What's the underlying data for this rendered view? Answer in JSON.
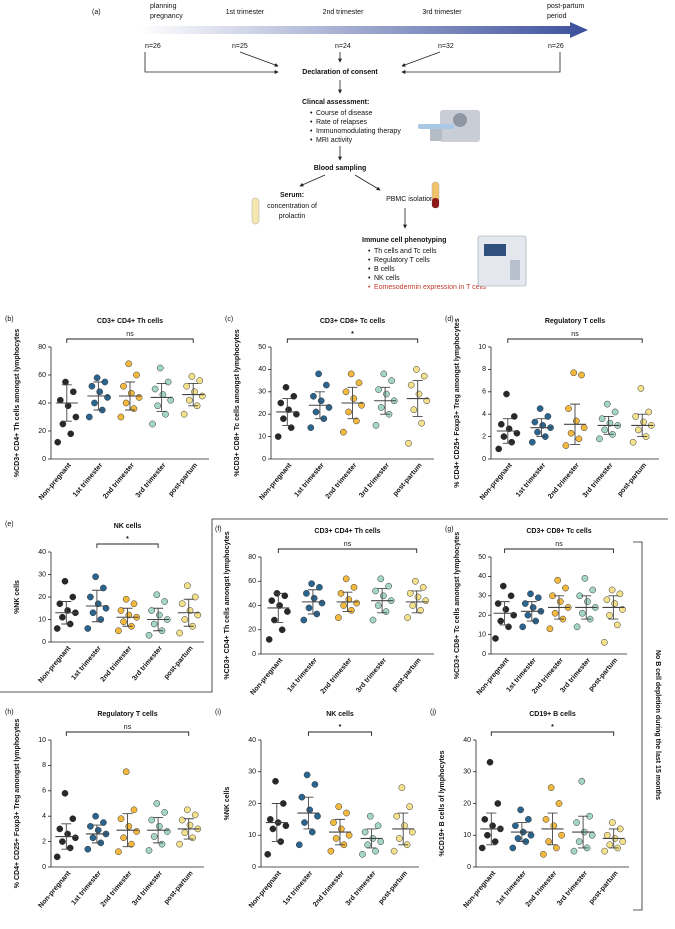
{
  "diagram": {
    "label": "(a)",
    "stages": [
      [
        "planning",
        "pregnancy"
      ],
      [
        "1st trimester"
      ],
      [
        "2nd trimester"
      ],
      [
        "3rd trimester"
      ],
      [
        "post-partum",
        "period"
      ]
    ],
    "n": [
      "n=26",
      "n=25",
      "n=24",
      "n=32",
      "n=26"
    ],
    "consent": "Declaration of consent",
    "assessment": "Clincal assessment:",
    "assessment_items": [
      "Course of disease",
      "Rate of relapses",
      "Immunomodulating therapy",
      "MRI activity"
    ],
    "sampling": "Blood sampling",
    "serum": "Serum:",
    "serum_text": [
      "concentration of",
      "prolactin"
    ],
    "pbmc": "PBMC isolation",
    "phenotyping": "Immune cell phenotyping",
    "phenotyping_items": [
      "Th cells and Tc cells",
      "Regulatory T cells",
      "B cells",
      "NK cells",
      "Eomesodermin expression in T cells"
    ],
    "side_note": "No B cell depletion during the last 15 months"
  },
  "chart_data": [
    {
      "type": "dotplot",
      "label": "(b)",
      "title": "CD3+ CD4+ Th cells",
      "ylabel": "%CD3+ CD4+ Th cells amongst lymphocytes",
      "categories": [
        "Non-pregnant",
        "1st trimester",
        "2nd trimester",
        "3rd trimester",
        "post-partum"
      ],
      "colors": [
        "#1c1c1c",
        "#1f5d8a",
        "#f2b535",
        "#9fd4c4",
        "#f3df86"
      ],
      "ylim": [
        0,
        80
      ],
      "yticks": [
        0,
        20,
        40,
        60,
        80
      ],
      "significance": "ns",
      "comparison": [
        "Non-pregnant",
        "post-partum"
      ],
      "groups": [
        {
          "mean": 40,
          "sd": 13,
          "points": [
            12,
            18,
            25,
            30,
            38,
            42,
            48,
            55
          ]
        },
        {
          "mean": 45,
          "sd": 10,
          "points": [
            30,
            35,
            40,
            44,
            48,
            52,
            55,
            58
          ]
        },
        {
          "mean": 45,
          "sd": 10,
          "points": [
            30,
            36,
            40,
            44,
            47,
            52,
            60,
            68
          ]
        },
        {
          "mean": 44,
          "sd": 10,
          "points": [
            25,
            32,
            38,
            42,
            46,
            50,
            55,
            65
          ]
        },
        {
          "mean": 46,
          "sd": 8,
          "points": [
            32,
            38,
            42,
            45,
            48,
            52,
            56,
            59
          ]
        }
      ]
    },
    {
      "type": "dotplot",
      "label": "(c)",
      "title": "CD3+ CD8+ Tc cells",
      "ylabel": "%CD3+ CD8+ Tc cells amongst lymphocytes",
      "categories": [
        "Non-pregnant",
        "1st trimester",
        "2nd trimester",
        "3rd trimester",
        "post-partum"
      ],
      "colors": [
        "#1c1c1c",
        "#1f5d8a",
        "#f2b535",
        "#9fd4c4",
        "#f3df86"
      ],
      "ylim": [
        0,
        50
      ],
      "yticks": [
        0,
        10,
        20,
        30,
        40,
        50
      ],
      "significance": "*",
      "comparison": [
        "Non-pregnant",
        "post-partum"
      ],
      "groups": [
        {
          "mean": 21,
          "sd": 6,
          "points": [
            10,
            14,
            18,
            20,
            22,
            25,
            28,
            32
          ]
        },
        {
          "mean": 24,
          "sd": 6,
          "points": [
            14,
            18,
            21,
            23,
            26,
            28,
            33,
            38
          ]
        },
        {
          "mean": 25,
          "sd": 7,
          "points": [
            12,
            17,
            21,
            24,
            27,
            30,
            34,
            38
          ]
        },
        {
          "mean": 26,
          "sd": 6,
          "points": [
            15,
            20,
            23,
            26,
            29,
            31,
            35,
            38
          ]
        },
        {
          "mean": 27,
          "sd": 8,
          "points": [
            7,
            16,
            22,
            26,
            29,
            33,
            37,
            40
          ]
        }
      ]
    },
    {
      "type": "dotplot",
      "label": "(d)",
      "title": "Regulatory T cells",
      "ylabel": "% CD4+ CD25+ Foxp3+ Treg amongst lymphocytes",
      "categories": [
        "Non-pregnant",
        "1st trimester",
        "2nd trimester",
        "3rd trimester",
        "post-partum"
      ],
      "colors": [
        "#1c1c1c",
        "#1f5d8a",
        "#f2b535",
        "#9fd4c4",
        "#f3df86"
      ],
      "ylim": [
        0,
        10
      ],
      "yticks": [
        0,
        2,
        4,
        6,
        8,
        10
      ],
      "significance": "ns",
      "comparison": [
        "Non-pregnant",
        "post-partum"
      ],
      "groups": [
        {
          "mean": 2.5,
          "sd": 1.1,
          "points": [
            0.9,
            1.5,
            2,
            2.3,
            2.7,
            3.1,
            3.8,
            5.8
          ]
        },
        {
          "mean": 2.8,
          "sd": 0.8,
          "points": [
            1.5,
            2,
            2.4,
            2.8,
            3,
            3.3,
            3.8,
            4.5
          ]
        },
        {
          "mean": 3.1,
          "sd": 1.8,
          "points": [
            1.2,
            1.8,
            2.3,
            2.8,
            3.4,
            4.5,
            7.5,
            7.7
          ]
        },
        {
          "mean": 3,
          "sd": 0.8,
          "points": [
            1.8,
            2.2,
            2.6,
            3,
            3.2,
            3.6,
            4.2,
            4.9
          ]
        },
        {
          "mean": 3,
          "sd": 1,
          "points": [
            1.5,
            2,
            2.6,
            3,
            3.3,
            3.8,
            4.2,
            6.3
          ]
        }
      ]
    },
    {
      "type": "dotplot",
      "label": "(e)",
      "title": "NK cells",
      "ylabel": "%NK cells",
      "categories": [
        "Non-pregnant",
        "1st trimester",
        "2nd trimester",
        "3rd trimester",
        "post-partum"
      ],
      "colors": [
        "#1c1c1c",
        "#1f5d8a",
        "#f2b535",
        "#9fd4c4",
        "#f3df86"
      ],
      "ylim": [
        0,
        40
      ],
      "yticks": [
        0,
        10,
        20,
        30,
        40
      ],
      "significance": "*",
      "comparison": [
        "1st trimester",
        "3rd trimester"
      ],
      "groups": [
        {
          "mean": 13,
          "sd": 5,
          "points": [
            6,
            8,
            11,
            13,
            14,
            17,
            20,
            27
          ]
        },
        {
          "mean": 16,
          "sd": 7,
          "points": [
            6,
            10,
            13,
            15,
            17,
            20,
            24,
            29
          ]
        },
        {
          "mean": 11,
          "sd": 4,
          "points": [
            5,
            7,
            9,
            11,
            12,
            14,
            17,
            19
          ]
        },
        {
          "mean": 10,
          "sd": 5,
          "points": [
            3,
            5,
            8,
            10,
            12,
            14,
            18,
            21
          ]
        },
        {
          "mean": 13,
          "sd": 6,
          "points": [
            4,
            7,
            10,
            12,
            14,
            17,
            20,
            25
          ]
        }
      ]
    },
    {
      "type": "dotplot",
      "label": "(f)",
      "title": "CD3+ CD4+ Th cells",
      "ylabel": "%CD3+ CD4+ Th cells amongst lymphocytes",
      "categories": [
        "Non-pregnant",
        "1st trimester",
        "2nd trimester",
        "3rd trimester",
        "post-partum"
      ],
      "colors": [
        "#1c1c1c",
        "#1f5d8a",
        "#f2b535",
        "#9fd4c4",
        "#f3df86"
      ],
      "ylim": [
        0,
        80
      ],
      "yticks": [
        0,
        20,
        40,
        60,
        80
      ],
      "significance": "ns",
      "comparison": [
        "Non-pregnant",
        "post-partum"
      ],
      "groups": [
        {
          "mean": 38,
          "sd": 12,
          "points": [
            12,
            20,
            28,
            35,
            40,
            44,
            48,
            50
          ]
        },
        {
          "mean": 43,
          "sd": 10,
          "points": [
            28,
            33,
            38,
            42,
            46,
            50,
            55,
            58
          ]
        },
        {
          "mean": 43,
          "sd": 8,
          "points": [
            30,
            36,
            40,
            42,
            45,
            50,
            55,
            62
          ]
        },
        {
          "mean": 44,
          "sd": 10,
          "points": [
            28,
            35,
            40,
            44,
            48,
            52,
            56,
            62
          ]
        },
        {
          "mean": 43,
          "sd": 9,
          "points": [
            30,
            36,
            40,
            44,
            47,
            50,
            55,
            60
          ]
        }
      ]
    },
    {
      "type": "dotplot",
      "label": "(g)",
      "title": "CD3+ CD8+ Tc cells",
      "ylabel": "%CD3+ CD8+ Tc cells amongst lymphocytes",
      "categories": [
        "Non-pregnant",
        "1st trimester",
        "2nd trimester",
        "3rd trimester",
        "post-partum"
      ],
      "colors": [
        "#1c1c1c",
        "#1f5d8a",
        "#f2b535",
        "#9fd4c4",
        "#f3df86"
      ],
      "ylim": [
        0,
        50
      ],
      "yticks": [
        0,
        10,
        20,
        30,
        40,
        50
      ],
      "significance": "ns",
      "comparison": [
        "Non-pregnant",
        "post-partum"
      ],
      "groups": [
        {
          "mean": 21,
          "sd": 6,
          "points": [
            8,
            14,
            17,
            20,
            23,
            26,
            30,
            35
          ]
        },
        {
          "mean": 22,
          "sd": 5,
          "points": [
            14,
            17,
            20,
            22,
            24,
            26,
            29,
            31
          ]
        },
        {
          "mean": 24,
          "sd": 6,
          "points": [
            13,
            18,
            21,
            24,
            27,
            30,
            34,
            38
          ]
        },
        {
          "mean": 24,
          "sd": 6,
          "points": [
            14,
            18,
            21,
            24,
            27,
            30,
            33,
            39
          ]
        },
        {
          "mean": 24,
          "sd": 6,
          "points": [
            6,
            15,
            20,
            23,
            26,
            28,
            31,
            33
          ]
        }
      ]
    },
    {
      "type": "dotplot",
      "label": "(h)",
      "title": "Regulatory T cells",
      "ylabel": "% CD4+ CD25+ Foxp3+ Treg amongst lymphocytes",
      "categories": [
        "Non-pregnant",
        "1st trimester",
        "2nd trimester",
        "3rd trimester",
        "post-partum"
      ],
      "colors": [
        "#1c1c1c",
        "#1f5d8a",
        "#f2b535",
        "#9fd4c4",
        "#f3df86"
      ],
      "ylim": [
        0,
        10
      ],
      "yticks": [
        0,
        2,
        4,
        6,
        8,
        10
      ],
      "significance": "ns",
      "comparison": [
        "Non-pregnant",
        "post-partum"
      ],
      "groups": [
        {
          "mean": 2.4,
          "sd": 1,
          "points": [
            0.8,
            1.5,
            2,
            2.3,
            2.6,
            3,
            3.8,
            5.8
          ]
        },
        {
          "mean": 2.6,
          "sd": 0.7,
          "points": [
            1.4,
            1.9,
            2.3,
            2.6,
            2.9,
            3.2,
            3.5,
            4
          ]
        },
        {
          "mean": 2.9,
          "sd": 1.3,
          "points": [
            1.2,
            1.8,
            2.3,
            2.8,
            3.2,
            3.8,
            4.5,
            7.5
          ]
        },
        {
          "mean": 2.9,
          "sd": 1,
          "points": [
            1.3,
            1.8,
            2.4,
            2.8,
            3.2,
            3.7,
            4.3,
            5
          ]
        },
        {
          "mean": 3,
          "sd": 0.8,
          "points": [
            1.8,
            2.3,
            2.7,
            3,
            3.3,
            3.7,
            4.1,
            4.5
          ]
        }
      ]
    },
    {
      "type": "dotplot",
      "label": "(i)",
      "title": "NK cells",
      "ylabel": "%NK cells",
      "categories": [
        "Non-pregnant",
        "1st trimester",
        "2nd trimester",
        "3rd trimester",
        "post-partum"
      ],
      "colors": [
        "#1c1c1c",
        "#1f5d8a",
        "#f2b535",
        "#9fd4c4",
        "#f3df86"
      ],
      "ylim": [
        0,
        40
      ],
      "yticks": [
        0,
        10,
        20,
        30,
        40
      ],
      "significance": "*",
      "comparison": [
        "1st trimester",
        "3rd trimester"
      ],
      "groups": [
        {
          "mean": 14,
          "sd": 6,
          "points": [
            4,
            8,
            12,
            13,
            14,
            15,
            20,
            27
          ]
        },
        {
          "mean": 17,
          "sd": 5,
          "points": [
            7,
            11,
            14,
            16,
            18,
            22,
            26,
            29
          ]
        },
        {
          "mean": 11,
          "sd": 4,
          "points": [
            5,
            7,
            9,
            10,
            12,
            14,
            17,
            19
          ]
        },
        {
          "mean": 9,
          "sd": 3,
          "points": [
            4,
            5,
            7,
            8,
            9,
            11,
            13,
            16
          ]
        },
        {
          "mean": 12,
          "sd": 5,
          "points": [
            5,
            7,
            9,
            11,
            13,
            16,
            19,
            25
          ]
        }
      ]
    },
    {
      "type": "dotplot",
      "label": "(j)",
      "title": "CD19+ B cells",
      "ylabel": "%CD19+ B cells of lymphocytes",
      "categories": [
        "Non-pregnant",
        "1st trimester",
        "2nd trimester",
        "3rd trimester",
        "post-partum"
      ],
      "colors": [
        "#1c1c1c",
        "#1f5d8a",
        "#f2b535",
        "#9fd4c4",
        "#f3df86"
      ],
      "ylim": [
        0,
        40
      ],
      "yticks": [
        0,
        10,
        20,
        30,
        40
      ],
      "significance": "*",
      "comparison": [
        "Non-pregnant",
        "post-partum"
      ],
      "groups": [
        {
          "mean": 12,
          "sd": 5,
          "points": [
            6,
            8,
            10,
            12,
            13,
            15,
            20,
            33
          ]
        },
        {
          "mean": 11,
          "sd": 3,
          "points": [
            6,
            8,
            9,
            10,
            11,
            13,
            15,
            18
          ]
        },
        {
          "mean": 12,
          "sd": 5,
          "points": [
            4,
            6,
            8,
            10,
            13,
            15,
            20,
            25
          ]
        },
        {
          "mean": 11,
          "sd": 5,
          "points": [
            5,
            6,
            8,
            10,
            11,
            14,
            16,
            27
          ]
        },
        {
          "mean": 9,
          "sd": 3,
          "points": [
            5,
            6,
            7,
            8,
            9,
            10,
            12,
            14
          ]
        }
      ]
    }
  ]
}
